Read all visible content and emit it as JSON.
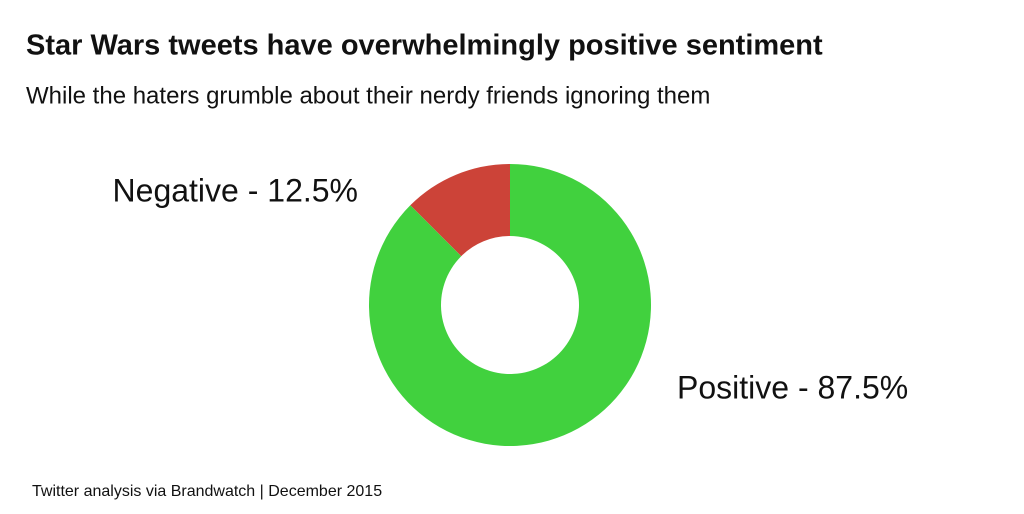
{
  "chart_data": {
    "type": "donut",
    "title": "Star Wars tweets have overwhelmingly positive sentiment",
    "subtitle": "While the haters grumble about their nerdy friends ignoring them",
    "values": [
      12.5,
      87.5
    ],
    "value_labels": [
      "Negative - 12.5%",
      "Positive - 87.5%"
    ],
    "colors": [
      "#cc4338",
      "#41d13e"
    ],
    "source": "Twitter analysis via Brandwatch | December 2015"
  }
}
